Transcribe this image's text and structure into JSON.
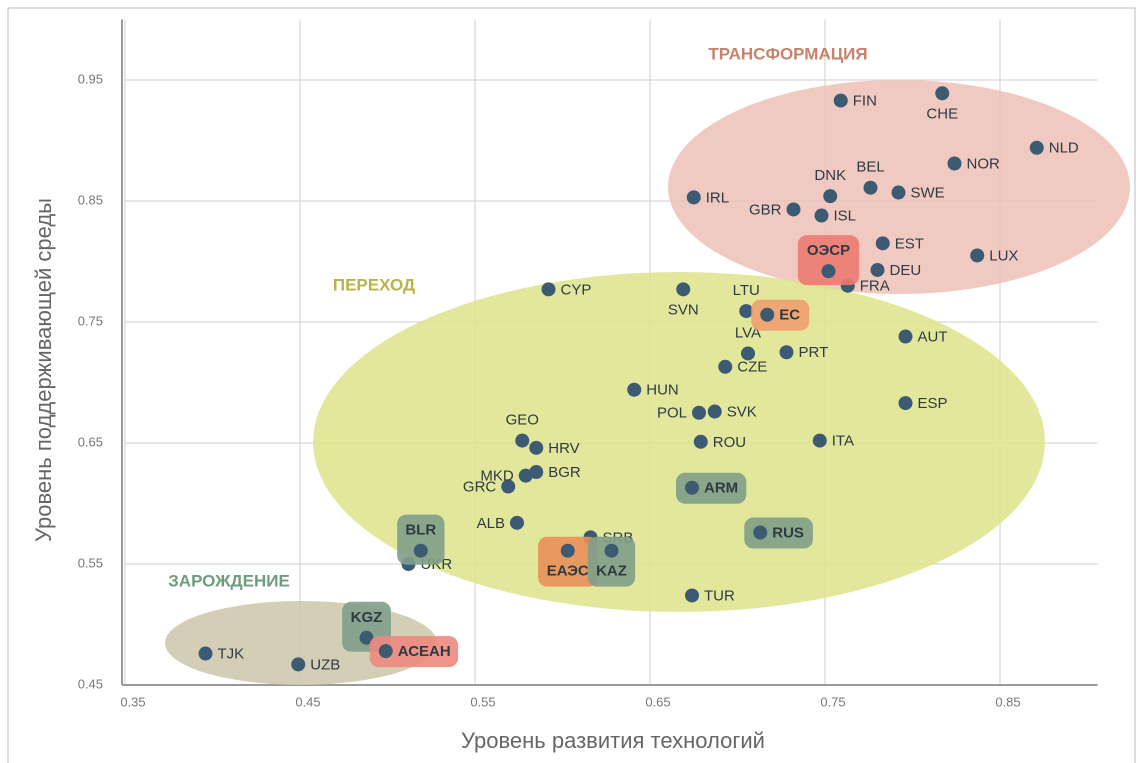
{
  "chart_data": {
    "type": "scatter",
    "x_label": "Уровень развития технологий",
    "y_label": "Уровень поддерживающей среды",
    "xlim": [
      0.35,
      0.9
    ],
    "ylim": [
      0.45,
      1.0
    ],
    "xticks": [
      0.35,
      0.45,
      0.55,
      0.65,
      0.75,
      0.85
    ],
    "yticks": [
      0.45,
      0.55,
      0.65,
      0.75,
      0.85,
      0.95
    ],
    "grid": true,
    "color": "#3d5a73",
    "annotations": [
      "ТРАНСФОРМАЦИЯ",
      "ПЕРЕХОД",
      "ЗАРОЖДЕНИЕ"
    ],
    "points": [
      {
        "label": "TJK",
        "x": 0.396,
        "y": 0.476
      },
      {
        "label": "UZB",
        "x": 0.449,
        "y": 0.467
      },
      {
        "label": "KGZ",
        "x": 0.488,
        "y": 0.489,
        "box": "#7f9f8a"
      },
      {
        "label": "АСЕАН",
        "x": 0.499,
        "y": 0.478,
        "box": "#ec8a80"
      },
      {
        "label": "UKR",
        "x": 0.512,
        "y": 0.55
      },
      {
        "label": "BLR",
        "x": 0.519,
        "y": 0.561,
        "box": "#7f9f8a"
      },
      {
        "label": "ALB",
        "x": 0.574,
        "y": 0.584
      },
      {
        "label": "SRB",
        "x": 0.616,
        "y": 0.572
      },
      {
        "label": "ЕАЭС",
        "x": 0.603,
        "y": 0.561,
        "box": "#e8905a"
      },
      {
        "label": "KAZ",
        "x": 0.628,
        "y": 0.561,
        "box": "#7f9f8a"
      },
      {
        "label": "TUR",
        "x": 0.674,
        "y": 0.524
      },
      {
        "label": "GRC",
        "x": 0.569,
        "y": 0.614
      },
      {
        "label": "MKD",
        "x": 0.579,
        "y": 0.623
      },
      {
        "label": "BGR",
        "x": 0.585,
        "y": 0.626
      },
      {
        "label": "GEO",
        "x": 0.577,
        "y": 0.652
      },
      {
        "label": "HRV",
        "x": 0.585,
        "y": 0.646
      },
      {
        "label": "HUN",
        "x": 0.641,
        "y": 0.694
      },
      {
        "label": "POL",
        "x": 0.678,
        "y": 0.675
      },
      {
        "label": "SVK",
        "x": 0.687,
        "y": 0.676
      },
      {
        "label": "ROU",
        "x": 0.679,
        "y": 0.651
      },
      {
        "label": "ARM",
        "x": 0.674,
        "y": 0.613,
        "box": "#7f9f8a"
      },
      {
        "label": "RUS",
        "x": 0.713,
        "y": 0.576,
        "box": "#7f9f8a"
      },
      {
        "label": "ITA",
        "x": 0.747,
        "y": 0.652
      },
      {
        "label": "CZE",
        "x": 0.693,
        "y": 0.713
      },
      {
        "label": "LVA",
        "x": 0.706,
        "y": 0.724
      },
      {
        "label": "PRT",
        "x": 0.728,
        "y": 0.725
      },
      {
        "label": "CYP",
        "x": 0.592,
        "y": 0.777
      },
      {
        "label": "SVN",
        "x": 0.669,
        "y": 0.777
      },
      {
        "label": "LTU",
        "x": 0.705,
        "y": 0.759
      },
      {
        "label": "ЕС",
        "x": 0.717,
        "y": 0.756,
        "box": "#f0a070"
      },
      {
        "label": "AUT",
        "x": 0.796,
        "y": 0.738
      },
      {
        "label": "ESP",
        "x": 0.796,
        "y": 0.683
      },
      {
        "label": "FRA",
        "x": 0.763,
        "y": 0.78
      },
      {
        "label": "DEU",
        "x": 0.78,
        "y": 0.793
      },
      {
        "label": "ОЭСР",
        "x": 0.752,
        "y": 0.792,
        "box": "#ec7a70"
      },
      {
        "label": "EST",
        "x": 0.783,
        "y": 0.815
      },
      {
        "label": "LUX",
        "x": 0.837,
        "y": 0.805
      },
      {
        "label": "IRL",
        "x": 0.675,
        "y": 0.853
      },
      {
        "label": "GBR",
        "x": 0.732,
        "y": 0.843
      },
      {
        "label": "ISL",
        "x": 0.748,
        "y": 0.838
      },
      {
        "label": "DNK",
        "x": 0.753,
        "y": 0.854
      },
      {
        "label": "BEL",
        "x": 0.776,
        "y": 0.861
      },
      {
        "label": "SWE",
        "x": 0.792,
        "y": 0.857
      },
      {
        "label": "NOR",
        "x": 0.824,
        "y": 0.881
      },
      {
        "label": "NLD",
        "x": 0.871,
        "y": 0.894
      },
      {
        "label": "FIN",
        "x": 0.759,
        "y": 0.933
      },
      {
        "label": "CHE",
        "x": 0.817,
        "y": 0.939
      }
    ]
  }
}
